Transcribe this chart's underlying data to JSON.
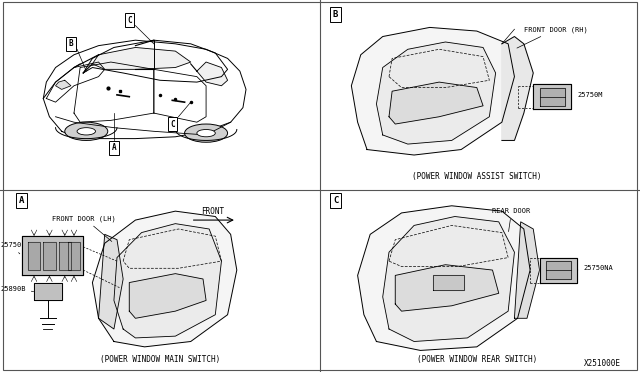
{
  "bg_color": "#ffffff",
  "text_color": "#000000",
  "line_color": "#000000",
  "diagram_id": "X251000E",
  "font_family": "monospace",
  "captions": {
    "B": "(POWER WINDOW ASSIST SWITCH)",
    "A": "(POWER WINDOW MAIN SWITCH)",
    "C": "(POWER WINDOW REAR SWITCH)"
  },
  "labels": {
    "B_door": "FRONT DOOR (RH)",
    "B_part": "25750M",
    "A_door": "FRONT DOOR (LH)",
    "A_part1": "25750",
    "A_part2": "25890B",
    "A_dir": "FRONT",
    "C_door": "REAR DOOR",
    "C_part": "25750NA"
  },
  "font_sizes": {
    "section_label": 6.5,
    "caption": 5.5,
    "part_label": 5.0,
    "direction": 5.5
  }
}
